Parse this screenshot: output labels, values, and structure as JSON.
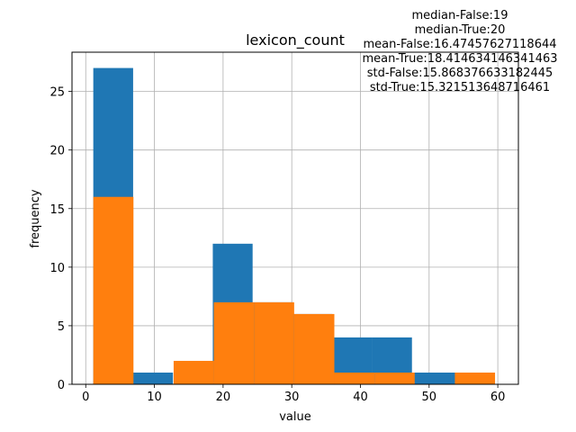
{
  "chart_data": {
    "type": "bar",
    "title": "lexicon_count",
    "xlabel": "value",
    "ylabel": "frequency",
    "xlim": [
      -2,
      63
    ],
    "ylim": [
      0,
      28.35
    ],
    "xticks": [
      0,
      10,
      20,
      30,
      40,
      50,
      60
    ],
    "yticks": [
      0,
      5,
      10,
      15,
      20,
      25
    ],
    "grid": true,
    "series": [
      {
        "color": "#1f77b4",
        "bins": [
          {
            "x0": 1.1,
            "x1": 6.9,
            "value": 27
          },
          {
            "x0": 6.9,
            "x1": 12.7,
            "value": 1
          },
          {
            "x0": 12.7,
            "x1": 18.5,
            "value": 0
          },
          {
            "x0": 18.5,
            "x1": 24.3,
            "value": 12
          },
          {
            "x0": 24.3,
            "x1": 30.1,
            "value": 7
          },
          {
            "x0": 30.1,
            "x1": 35.9,
            "value": 6
          },
          {
            "x0": 35.9,
            "x1": 41.7,
            "value": 4
          },
          {
            "x0": 41.7,
            "x1": 47.5,
            "value": 4
          },
          {
            "x0": 47.5,
            "x1": 53.3,
            "value": 1
          },
          {
            "x0": 53.3,
            "x1": 59.1,
            "value": 1
          }
        ]
      },
      {
        "color": "#ff7f0e",
        "bins": [
          {
            "x0": 1.1,
            "x1": 6.95,
            "value": 16
          },
          {
            "x0": 6.95,
            "x1": 12.8,
            "value": 0
          },
          {
            "x0": 12.8,
            "x1": 18.65,
            "value": 2
          },
          {
            "x0": 18.65,
            "x1": 24.5,
            "value": 7
          },
          {
            "x0": 24.5,
            "x1": 30.35,
            "value": 7
          },
          {
            "x0": 30.35,
            "x1": 36.2,
            "value": 6
          },
          {
            "x0": 36.2,
            "x1": 42.05,
            "value": 1
          },
          {
            "x0": 42.05,
            "x1": 47.9,
            "value": 1
          },
          {
            "x0": 47.9,
            "x1": 53.75,
            "value": 0
          },
          {
            "x0": 53.75,
            "x1": 59.6,
            "value": 1
          }
        ]
      }
    ],
    "stats": [
      "median-False:19",
      "median-True:20",
      "mean-False:16.47457627118644",
      "mean-True:18.414634146341463",
      "std-False:15.868376633182445",
      "std-True:15.321513648716461"
    ]
  }
}
